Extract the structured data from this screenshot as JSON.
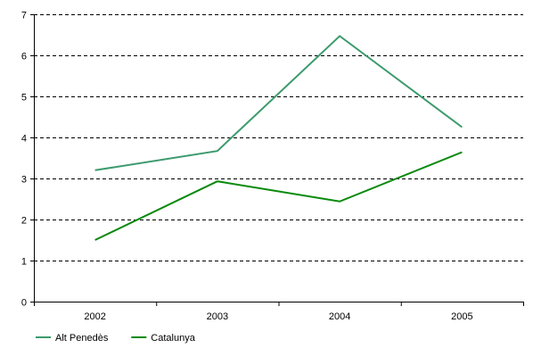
{
  "chart_data": {
    "type": "line",
    "x": [
      "2002",
      "2003",
      "2004",
      "2005"
    ],
    "series": [
      {
        "name": "Alt Penedès",
        "values": [
          3.2,
          3.67,
          6.47,
          4.25
        ],
        "color": "#3c9a6e"
      },
      {
        "name": "Catalunya",
        "values": [
          1.5,
          2.93,
          2.44,
          3.64
        ],
        "color": "#078a0b"
      }
    ],
    "ylim": [
      0,
      7
    ],
    "yticks": [
      "0",
      "1",
      "2",
      "3",
      "4",
      "5",
      "6",
      "7"
    ],
    "grid": true,
    "grid_style": "dashed",
    "legend_position": "bottom-left"
  }
}
